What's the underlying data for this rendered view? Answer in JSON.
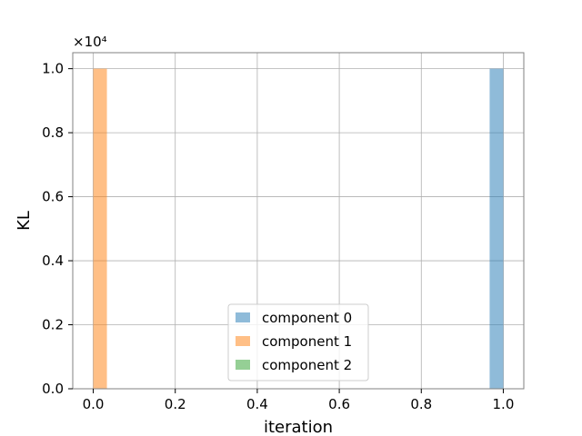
{
  "chart_data": {
    "type": "bar",
    "title": "",
    "xlabel": "iteration",
    "ylabel": "KL",
    "y_offset_text": "×10⁴",
    "xlim": [
      -0.05,
      1.05
    ],
    "ylim": [
      0,
      10500
    ],
    "xticks": [
      0.0,
      0.2,
      0.4,
      0.6,
      0.8,
      1.0
    ],
    "xtick_labels": [
      "0.0",
      "0.2",
      "0.4",
      "0.6",
      "0.8",
      "1.0"
    ],
    "yticks": [
      0,
      2000,
      4000,
      6000,
      8000,
      10000
    ],
    "ytick_labels": [
      "0.0",
      "0.2",
      "0.4",
      "0.6",
      "0.8",
      "1.0"
    ],
    "grid": true,
    "legend_position": "lower-center",
    "series": [
      {
        "name": "component 0",
        "color": "#1f77b4",
        "alpha": 0.5,
        "bars": [
          {
            "x0": 0.9667,
            "x1": 1.0,
            "value": 10000
          }
        ]
      },
      {
        "name": "component 1",
        "color": "#ff7f0e",
        "alpha": 0.5,
        "bars": [
          {
            "x0": 0.0,
            "x1": 0.0333,
            "value": 10000
          }
        ]
      },
      {
        "name": "component 2",
        "color": "#2ca02c",
        "alpha": 0.5,
        "bars": []
      }
    ]
  }
}
